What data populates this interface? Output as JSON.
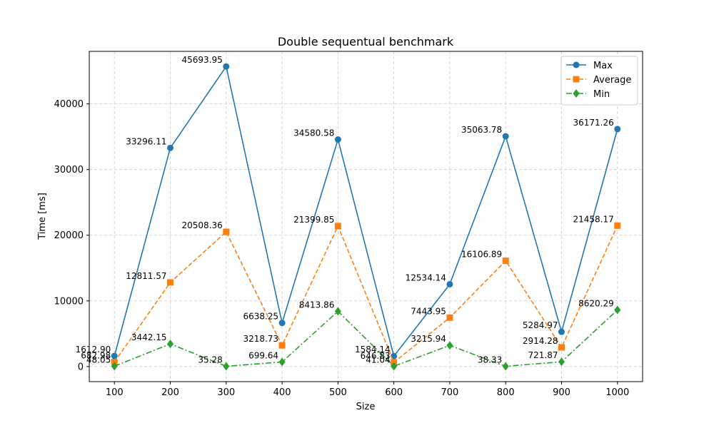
{
  "chart_data": {
    "type": "line",
    "title": "Double sequentual benchmark",
    "xlabel": "Size",
    "ylabel": "Time [ms]",
    "x": [
      100,
      200,
      300,
      400,
      500,
      600,
      700,
      800,
      900,
      1000
    ],
    "xlim": [
      55,
      1045
    ],
    "ylim": [
      -2300,
      48000
    ],
    "xticks": [
      "100",
      "200",
      "300",
      "400",
      "500",
      "600",
      "700",
      "800",
      "900",
      "1000"
    ],
    "yticks": [
      0,
      10000,
      20000,
      30000,
      40000
    ],
    "ytick_labels": [
      "0",
      "10000",
      "20000",
      "30000",
      "40000"
    ],
    "grid": true,
    "legend_position": "top-right",
    "series": [
      {
        "name": "Max",
        "color": "#1f77b4",
        "line_style": "solid",
        "marker": "circle",
        "values": [
          1612.9,
          33296.11,
          45693.95,
          6638.25,
          34580.58,
          1584.14,
          12534.14,
          35063.78,
          5284.97,
          36171.26
        ],
        "labels": [
          "1612.90",
          "33296.11",
          "45693.95",
          "6638.25",
          "34580.58",
          "1584.14",
          "12534.14",
          "35063.78",
          "5284.97",
          "36171.26"
        ]
      },
      {
        "name": "Average",
        "color": "#ff7f0e",
        "line_style": "dashed",
        "marker": "square",
        "values": [
          682.98,
          12811.57,
          20508.36,
          3218.73,
          21399.85,
          646.83,
          7443.95,
          16106.89,
          2914.28,
          21458.17
        ],
        "labels": [
          "682.98",
          "12811.57",
          "20508.36",
          "3218.73",
          "21399.85",
          "646.83",
          "7443.95",
          "16106.89",
          "2914.28",
          "21458.17"
        ]
      },
      {
        "name": "Min",
        "color": "#2ca02c",
        "line_style": "dashdot",
        "marker": "diamond",
        "values": [
          48.05,
          3442.15,
          35.28,
          699.64,
          8413.86,
          41.04,
          3215.94,
          38.33,
          721.87,
          8620.29
        ],
        "labels": [
          "48.05",
          "3442.15",
          "35.28",
          "699.64",
          "8413.86",
          "41.04",
          "3215.94",
          "38.33",
          "721.87",
          "8620.29"
        ]
      }
    ]
  }
}
